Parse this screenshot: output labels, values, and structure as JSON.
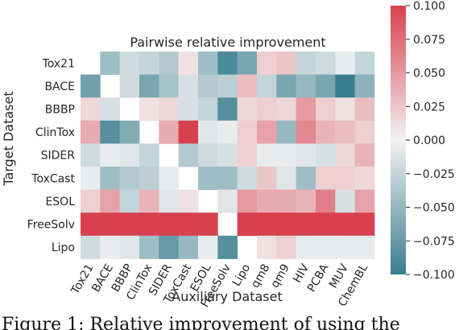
{
  "chart_data": {
    "type": "heatmap",
    "title": "Pairwise relative improvement",
    "xlabel": "Auxiliary Dataset",
    "ylabel": "Target Dataset",
    "columns": [
      "Tox21",
      "BACE",
      "BBBP",
      "ClinTox",
      "SIDER",
      "ToxCast",
      "ESOL",
      "FreeSolv",
      "Lipo",
      "qm8",
      "qm9",
      "HIV",
      "PCBA",
      "MUV",
      "ChemBL"
    ],
    "rows": [
      "Tox21",
      "BACE",
      "BBBP",
      "ClinTox",
      "SIDER",
      "ToxCast",
      "ESOL",
      "FreeSolv",
      "Lipo"
    ],
    "values": [
      [
        null,
        -0.045,
        -0.02,
        -0.025,
        -0.035,
        0.01,
        -0.045,
        -0.09,
        -0.065,
        0.02,
        0.025,
        -0.025,
        -0.02,
        -0.005,
        -0.025
      ],
      [
        -0.07,
        null,
        -0.02,
        -0.065,
        -0.04,
        -0.015,
        -0.035,
        -0.03,
        0.03,
        -0.025,
        -0.065,
        -0.05,
        -0.065,
        -0.1,
        -0.055
      ],
      [
        0.015,
        -0.015,
        null,
        0.01,
        0.015,
        -0.015,
        -0.025,
        -0.085,
        0.015,
        0.02,
        0.015,
        0.05,
        0.02,
        0.01,
        0.03
      ],
      [
        0.04,
        -0.085,
        -0.06,
        null,
        0.04,
        0.1,
        -0.01,
        -0.005,
        0.02,
        0.045,
        -0.05,
        0.06,
        0.035,
        0.03,
        0.02
      ],
      [
        -0.02,
        -0.005,
        -0.01,
        -0.025,
        null,
        -0.035,
        -0.02,
        -0.015,
        0.02,
        -0.005,
        -0.005,
        -0.01,
        -0.015,
        0.015,
        0.035
      ],
      [
        -0.005,
        -0.045,
        -0.035,
        -0.03,
        -0.005,
        null,
        -0.045,
        -0.045,
        -0.02,
        0.025,
        -0.01,
        -0.045,
        0.02,
        0.02,
        0.015
      ],
      [
        0.02,
        0.045,
        -0.025,
        0.035,
        -0.01,
        0.01,
        null,
        -0.01,
        0.05,
        0.04,
        0.04,
        0.035,
        0.065,
        -0.015,
        0.045
      ],
      [
        0.1,
        0.1,
        0.1,
        0.1,
        0.1,
        0.1,
        0.1,
        null,
        0.1,
        0.1,
        0.1,
        0.1,
        0.1,
        0.1,
        0.1
      ],
      [
        -0.02,
        -0.005,
        -0.01,
        -0.045,
        -0.075,
        -0.05,
        -0.005,
        -0.085,
        null,
        0.01,
        0.02,
        -0.005,
        -0.005,
        -0.005,
        -0.005
      ]
    ],
    "colorbar": {
      "range": [
        -0.1,
        0.1
      ],
      "ticks": [
        "-0.100",
        "-0.075",
        "-0.050",
        "-0.025",
        "0.000",
        "0.025",
        "0.050",
        "0.075",
        "0.100"
      ],
      "low_color": "#3a7d8f",
      "mid_color": "#f2f2f2",
      "high_color": "#d7414e"
    },
    "diagonal_missing": true,
    "grid": false
  },
  "caption": "Figure 1: Relative improvement of using the"
}
